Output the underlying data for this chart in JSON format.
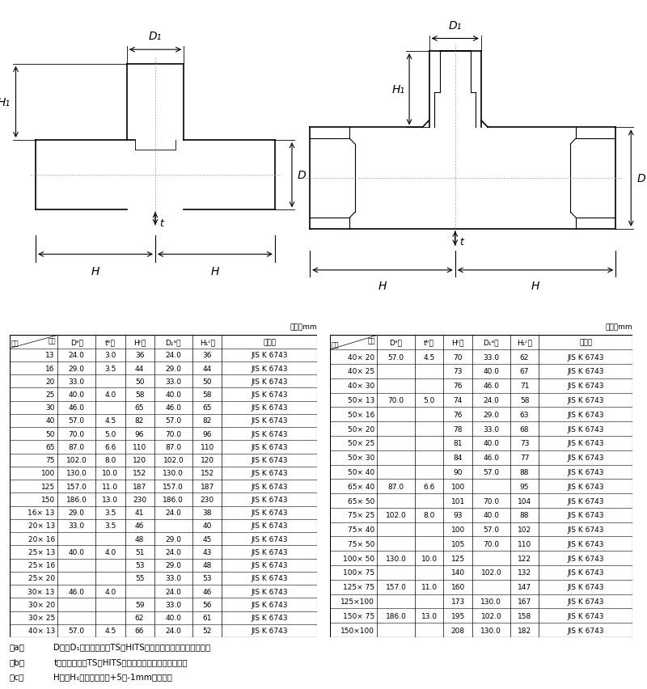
{
  "unit_label": "単位：mm",
  "table1_rows": [
    [
      "13",
      "24.0",
      "3.0",
      "36",
      "24.0",
      "36",
      "JIS K 6743"
    ],
    [
      "16",
      "29.0",
      "3.5",
      "44",
      "29.0",
      "44",
      "JIS K 6743"
    ],
    [
      "20",
      "33.0",
      "",
      "50",
      "33.0",
      "50",
      "JIS K 6743"
    ],
    [
      "25",
      "40.0",
      "4.0",
      "58",
      "40.0",
      "58",
      "JIS K 6743"
    ],
    [
      "30",
      "46.0",
      "",
      "65",
      "46.0",
      "65",
      "JIS K 6743"
    ],
    [
      "40",
      "57.0",
      "4.5",
      "82",
      "57.0",
      "82",
      "JIS K 6743"
    ],
    [
      "50",
      "70.0",
      "5.0",
      "96",
      "70.0",
      "96",
      "JIS K 6743"
    ],
    [
      "65",
      "87.0",
      "6.6",
      "110",
      "87.0",
      "110",
      "JIS K 6743"
    ],
    [
      "75",
      "102.0",
      "8.0",
      "120",
      "102.0",
      "120",
      "JIS K 6743"
    ],
    [
      "100",
      "130.0",
      "10.0",
      "152",
      "130.0",
      "152",
      "JIS K 6743"
    ],
    [
      "125",
      "157.0",
      "11.0",
      "187",
      "157.0",
      "187",
      "JIS K 6743"
    ],
    [
      "150",
      "186.0",
      "13.0",
      "230",
      "186.0",
      "230",
      "JIS K 6743"
    ],
    [
      "16× 13",
      "29.0",
      "3.5",
      "41",
      "24.0",
      "38",
      "JIS K 6743"
    ],
    [
      "20× 13",
      "33.0",
      "3.5",
      "46",
      "",
      "40",
      "JIS K 6743"
    ],
    [
      "20× 16",
      "",
      "",
      "48",
      "29.0",
      "45",
      "JIS K 6743"
    ],
    [
      "25× 13",
      "40.0",
      "4.0",
      "51",
      "24.0",
      "43",
      "JIS K 6743"
    ],
    [
      "25× 16",
      "",
      "",
      "53",
      "29.0",
      "48",
      "JIS K 6743"
    ],
    [
      "25× 20",
      "",
      "",
      "55",
      "33.0",
      "53",
      "JIS K 6743"
    ],
    [
      "30× 13",
      "46.0",
      "4.0",
      "",
      "24.0",
      "46",
      "JIS K 6743"
    ],
    [
      "30× 20",
      "",
      "",
      "59",
      "33.0",
      "56",
      "JIS K 6743"
    ],
    [
      "30× 25",
      "",
      "",
      "62",
      "40.0",
      "61",
      "JIS K 6743"
    ],
    [
      "40× 13",
      "57.0",
      "4.5",
      "66",
      "24.0",
      "52",
      "JIS K 6743"
    ]
  ],
  "table2_rows": [
    [
      "40× 20",
      "57.0",
      "4.5",
      "70",
      "33.0",
      "62",
      "JIS K 6743"
    ],
    [
      "40× 25",
      "",
      "",
      "73",
      "40.0",
      "67",
      "JIS K 6743"
    ],
    [
      "40× 30",
      "",
      "",
      "76",
      "46.0",
      "71",
      "JIS K 6743"
    ],
    [
      "50× 13",
      "70.0",
      "5.0",
      "74",
      "24.0",
      "58",
      "JIS K 6743"
    ],
    [
      "50× 16",
      "",
      "",
      "76",
      "29.0",
      "63",
      "JIS K 6743"
    ],
    [
      "50× 20",
      "",
      "",
      "78",
      "33.0",
      "68",
      "JIS K 6743"
    ],
    [
      "50× 25",
      "",
      "",
      "81",
      "40.0",
      "73",
      "JIS K 6743"
    ],
    [
      "50× 30",
      "",
      "",
      "84",
      "46.0",
      "77",
      "JIS K 6743"
    ],
    [
      "50× 40",
      "",
      "",
      "90",
      "57.0",
      "88",
      "JIS K 6743"
    ],
    [
      "65× 40",
      "87.0",
      "6.6",
      "100",
      "",
      "95",
      "JIS K 6743"
    ],
    [
      "65× 50",
      "",
      "",
      "101",
      "70.0",
      "104",
      "JIS K 6743"
    ],
    [
      "75× 25",
      "102.0",
      "8.0",
      "93",
      "40.0",
      "88",
      "JIS K 6743"
    ],
    [
      "75× 40",
      "",
      "",
      "100",
      "57.0",
      "102",
      "JIS K 6743"
    ],
    [
      "75× 50",
      "",
      "",
      "105",
      "70.0",
      "110",
      "JIS K 6743"
    ],
    [
      "100× 50",
      "130.0",
      "10.0",
      "125",
      "",
      "122",
      "JIS K 6743"
    ],
    [
      "100× 75",
      "",
      "",
      "140",
      "102.0",
      "132",
      "JIS K 6743"
    ],
    [
      "125× 75",
      "157.0",
      "11.0",
      "160",
      "",
      "147",
      "JIS K 6743"
    ],
    [
      "125×100",
      "",
      "",
      "173",
      "130.0",
      "167",
      "JIS K 6743"
    ],
    [
      "150× 75",
      "186.0",
      "13.0",
      "195",
      "102.0",
      "158",
      "JIS K 6743"
    ],
    [
      "150×100",
      "",
      "",
      "208",
      "130.0",
      "182",
      "JIS K 6743"
    ]
  ],
  "notes": [
    "注a）  D及びD₁の許容差は、TS・HITS継手受口共通寸法図による。",
    "注b）  tの許容差は、TS・HITS継手受口共通寸法図による。",
    "注c）  H及びH₁の許容差は、+5／-1mmとする。"
  ],
  "bg_color": "#ffffff"
}
